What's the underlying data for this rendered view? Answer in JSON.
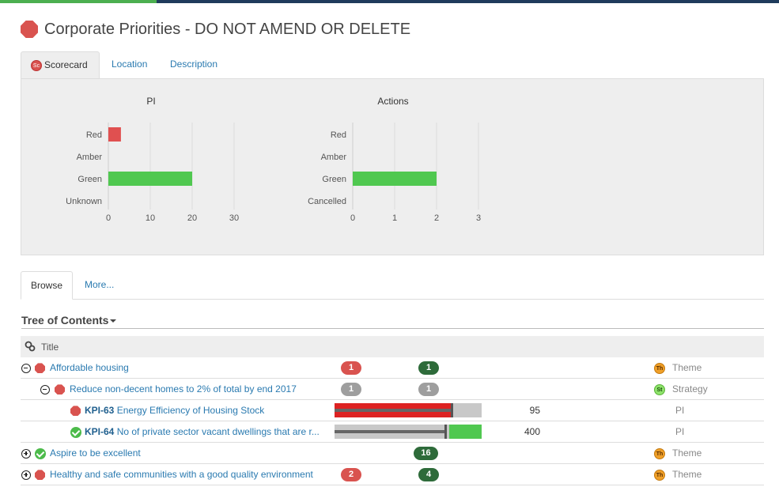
{
  "page": {
    "title": "Corporate Priorities - DO NOT AMEND OR DELETE"
  },
  "tabs_top": [
    {
      "label": "Scorecard",
      "icon": "Sc"
    },
    {
      "label": "Location"
    },
    {
      "label": "Description"
    }
  ],
  "tabs_bottom": [
    {
      "label": "Browse"
    },
    {
      "label": "More..."
    }
  ],
  "chart_data": [
    {
      "type": "bar",
      "title": "PI",
      "categories": [
        "Red",
        "Amber",
        "Green",
        "Unknown"
      ],
      "values": [
        3,
        0,
        20,
        0
      ],
      "colors": [
        "#e05050",
        "#e0a030",
        "#50c850",
        "#888888"
      ],
      "xlim": [
        0,
        30
      ],
      "ticks": [
        "0",
        "10",
        "20",
        "30"
      ],
      "tick_values": [
        0,
        10,
        20,
        30
      ],
      "grid": true
    },
    {
      "type": "bar",
      "title": "Actions",
      "categories": [
        "Red",
        "Amber",
        "Green",
        "Cancelled"
      ],
      "values": [
        0,
        0,
        2,
        0
      ],
      "colors": [
        "#e05050",
        "#e0a030",
        "#50c850",
        "#888888"
      ],
      "xlim": [
        0,
        3
      ],
      "ticks": [
        "0",
        "1",
        "2",
        "3"
      ],
      "tick_values": [
        0,
        1,
        2,
        3
      ],
      "grid": true
    }
  ],
  "tree": {
    "heading": "Tree of Contents",
    "column_title": "Title",
    "rows": [
      {
        "title": "Affordable housing",
        "red": "1",
        "green": "1",
        "type": "Theme",
        "type_icon": "Th"
      },
      {
        "title": "Reduce non-decent homes to 2% of total by end 2017",
        "red": "1",
        "green": "1",
        "type": "Strategy",
        "type_icon": "St"
      },
      {
        "code": "KPI-63",
        "title": "Energy Efficiency of Housing Stock",
        "value": "95",
        "type": "PI",
        "actual_fraction": 0.8,
        "target_fraction": 0.8
      },
      {
        "code": "KPI-64",
        "title": "No of private sector vacant dwellings that are r...",
        "value": "400",
        "type": "PI",
        "actual_fraction": 0.78,
        "target_fraction": 0.76
      },
      {
        "title": "Aspire to be excellent",
        "green": "16",
        "type": "Theme",
        "type_icon": "Th"
      },
      {
        "title": "Healthy and safe communities with a good quality environment",
        "red": "2",
        "green": "4",
        "type": "Theme",
        "type_icon": "Th"
      }
    ]
  },
  "colors": {
    "red": "#d9534f",
    "green": "#2e6b3a",
    "link": "#2a7ab0",
    "bar_red": "#dd2222",
    "bar_green": "#50c850"
  }
}
